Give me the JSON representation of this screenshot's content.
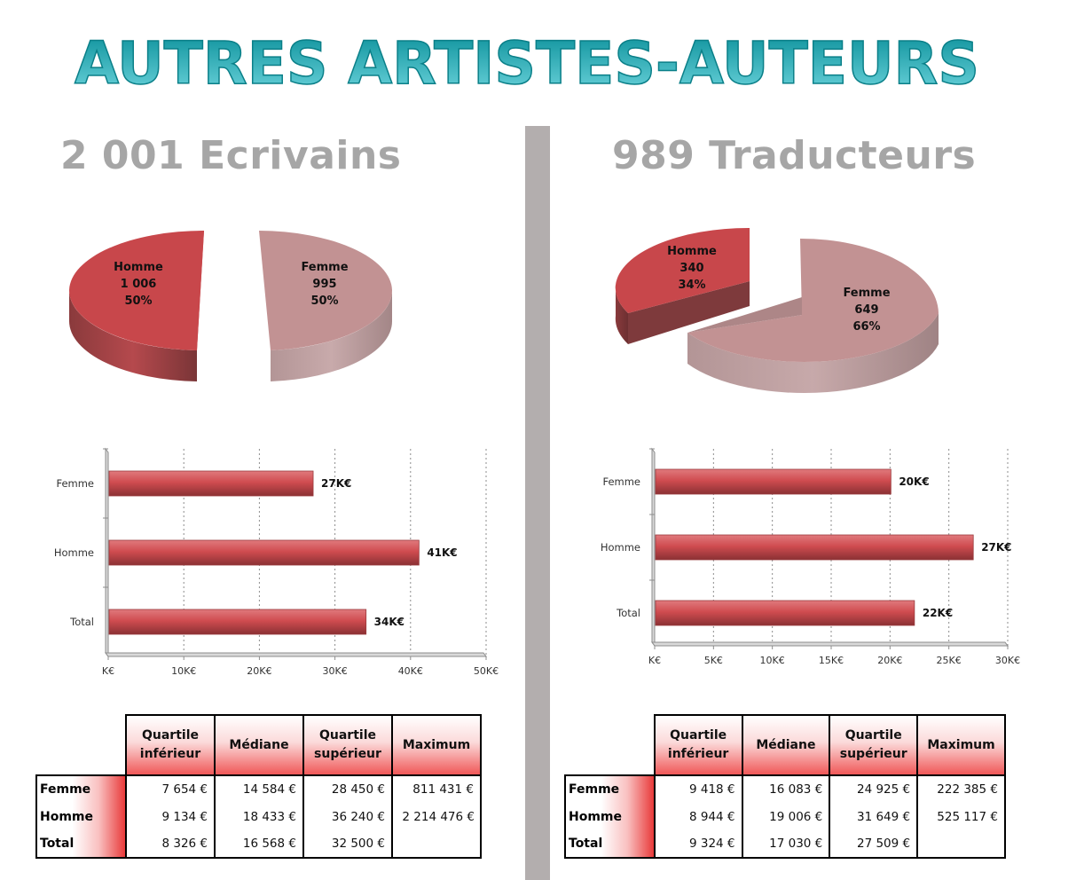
{
  "title": "AUTRES ARTISTES-AUTEURS",
  "colors": {
    "homme": "#c8474b",
    "femme": "#c49293",
    "bar": "#d04c50",
    "title_top": "#0a8f99",
    "title_bottom": "#6fd6de",
    "subtitle": "#a6a6a6",
    "divider": "#b3aeae"
  },
  "panels": [
    {
      "subtitle": "2 001 Ecrivains",
      "pie": {
        "slices": [
          {
            "label": "Homme",
            "value_text": "1 006",
            "pct_text": "50%",
            "value": 1006,
            "pct": 50
          },
          {
            "label": "Femme",
            "value_text": "995",
            "pct_text": "50%",
            "value": 995,
            "pct": 50
          }
        ]
      },
      "table": {
        "headers": [
          "Quartile inférieur",
          "Médiane",
          "Quartile supérieur",
          "Maximum"
        ],
        "rows": [
          {
            "label": "Femme",
            "cells": [
              "7 654 €",
              "14 584 €",
              "28 450 €",
              "811 431 €"
            ]
          },
          {
            "label": "Homme",
            "cells": [
              "9 134 €",
              "18 433 €",
              "36 240 €",
              "2 214 476 €"
            ]
          },
          {
            "label": "Total",
            "cells": [
              "8 326 €",
              "16 568 €",
              "32 500 €",
              ""
            ]
          }
        ]
      }
    },
    {
      "subtitle": "989 Traducteurs",
      "pie": {
        "slices": [
          {
            "label": "Homme",
            "value_text": "340",
            "pct_text": "34%",
            "value": 340,
            "pct": 34
          },
          {
            "label": "Femme",
            "value_text": "649",
            "pct_text": "66%",
            "value": 649,
            "pct": 66
          }
        ]
      },
      "table": {
        "headers": [
          "Quartile inférieur",
          "Médiane",
          "Quartile supérieur",
          "Maximum"
        ],
        "rows": [
          {
            "label": "Femme",
            "cells": [
              "9 418 €",
              "16 083 €",
              "24 925 €",
              "222 385 €"
            ]
          },
          {
            "label": "Homme",
            "cells": [
              "8 944 €",
              "19 006 €",
              "31 649 €",
              "525 117 €"
            ]
          },
          {
            "label": "Total",
            "cells": [
              "9 324 €",
              "17 030 €",
              "27 509 €",
              ""
            ]
          }
        ]
      }
    }
  ],
  "chart_data": [
    {
      "type": "pie",
      "title": "",
      "categories": [
        "Homme",
        "Femme"
      ],
      "values": [
        1006,
        995
      ],
      "percent": [
        50,
        50
      ]
    },
    {
      "type": "bar",
      "orientation": "horizontal",
      "title": "",
      "categories": [
        "Femme",
        "Homme",
        "Total"
      ],
      "values": [
        27,
        41,
        34
      ],
      "data_labels": [
        "27K€",
        "41K€",
        "34K€"
      ],
      "xlim": [
        0,
        50
      ],
      "xticks": [
        "K€",
        "10K€",
        "20K€",
        "30K€",
        "40K€",
        "50K€"
      ],
      "grid": true,
      "xlabel": "",
      "ylabel": ""
    },
    {
      "type": "pie",
      "title": "",
      "categories": [
        "Homme",
        "Femme"
      ],
      "values": [
        340,
        649
      ],
      "percent": [
        34,
        66
      ]
    },
    {
      "type": "bar",
      "orientation": "horizontal",
      "title": "",
      "categories": [
        "Femme",
        "Homme",
        "Total"
      ],
      "values": [
        20,
        27,
        22
      ],
      "data_labels": [
        "20K€",
        "27K€",
        "22K€"
      ],
      "xlim": [
        0,
        30
      ],
      "xticks": [
        "K€",
        "5K€",
        "10K€",
        "15K€",
        "20K€",
        "25K€",
        "30K€"
      ],
      "grid": true,
      "xlabel": "",
      "ylabel": ""
    }
  ]
}
